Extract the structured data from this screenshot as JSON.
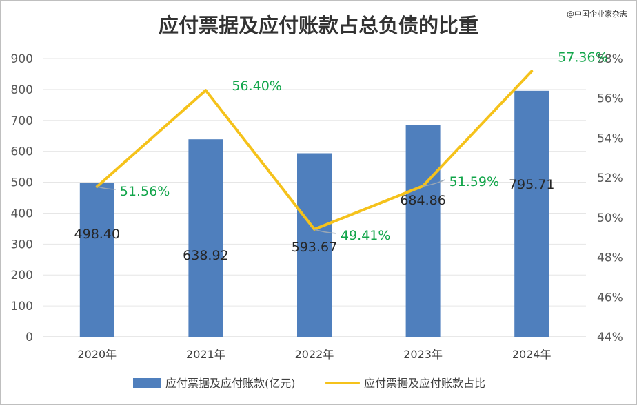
{
  "title": "应付票据及应付账款占总负债的比重",
  "watermark": "@中国企业家杂志",
  "chart_data": {
    "type": "bar+line",
    "categories": [
      "2020年",
      "2021年",
      "2022年",
      "2023年",
      "2024年"
    ],
    "series": [
      {
        "name": "应付票据及应付账款(亿元)",
        "type": "bar",
        "axis": "left",
        "values": [
          498.4,
          638.92,
          593.67,
          684.86,
          795.71
        ],
        "labels": [
          "498.40",
          "638.92",
          "593.67",
          "684.86",
          "795.71"
        ],
        "color": "#4f7fbd"
      },
      {
        "name": "应付票据及应付账款占比",
        "type": "line",
        "axis": "right",
        "values": [
          51.56,
          56.4,
          49.41,
          51.59,
          57.36
        ],
        "labels": [
          "51.56%",
          "56.40%",
          "49.41%",
          "51.59%",
          "57.36%"
        ],
        "color": "#f5c21b",
        "label_color": "#12a54a"
      }
    ],
    "y_left": {
      "ylim": [
        0,
        900
      ],
      "ticks": [
        "0",
        "100",
        "200",
        "300",
        "400",
        "500",
        "600",
        "700",
        "800",
        "900"
      ]
    },
    "y_right": {
      "ylim": [
        44,
        58
      ],
      "ticks": [
        "44%",
        "46%",
        "48%",
        "50%",
        "52%",
        "54%",
        "56%",
        "58%"
      ]
    },
    "grid": true,
    "legend": "bottom"
  }
}
